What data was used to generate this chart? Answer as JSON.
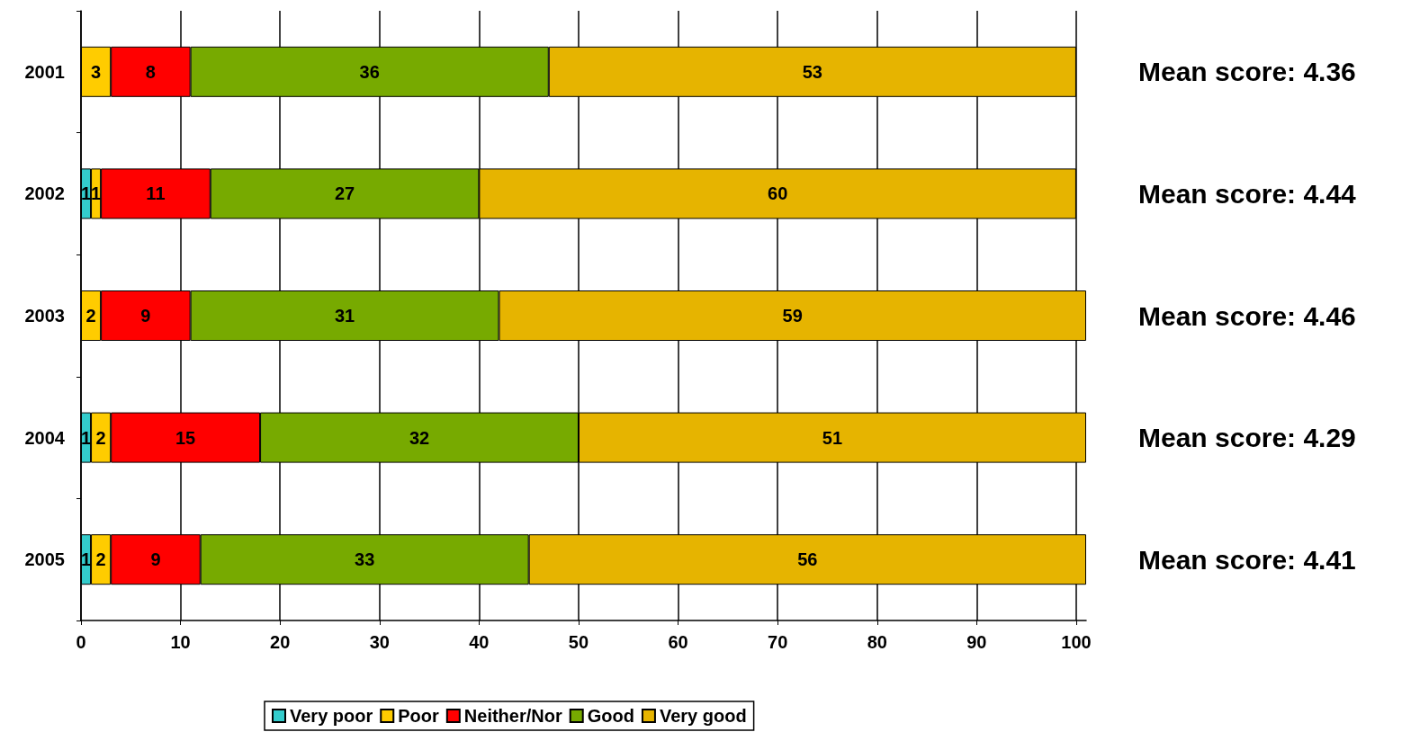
{
  "chart_data": {
    "type": "bar",
    "orientation": "horizontal",
    "stacked": true,
    "categories": [
      "2001",
      "2002",
      "2003",
      "2004",
      "2005"
    ],
    "series": [
      {
        "name": "Very poor",
        "color": "#33cccc",
        "values": [
          null,
          1,
          null,
          1,
          1
        ]
      },
      {
        "name": "Poor",
        "color": "#ffcc00",
        "values": [
          3,
          1,
          2,
          2,
          2
        ]
      },
      {
        "name": "Neither/Nor",
        "color": "#ff0000",
        "values": [
          8,
          11,
          9,
          15,
          9
        ]
      },
      {
        "name": "Good",
        "color": "#77aa00",
        "values": [
          36,
          27,
          31,
          32,
          33
        ]
      },
      {
        "name": "Very good",
        "color": "#e6b400",
        "values": [
          53,
          60,
          59,
          51,
          56
        ]
      }
    ],
    "xlim": [
      0,
      101
    ],
    "xticks": [
      0,
      10,
      20,
      30,
      40,
      50,
      60,
      70,
      80,
      90,
      100
    ],
    "grid": "x",
    "legend": "bottom",
    "data_labels": true,
    "annotations": [
      "Mean score: 4.36",
      "Mean score: 4.44",
      "Mean score: 4.46",
      "Mean score: 4.29",
      "Mean score: 4.41"
    ]
  }
}
